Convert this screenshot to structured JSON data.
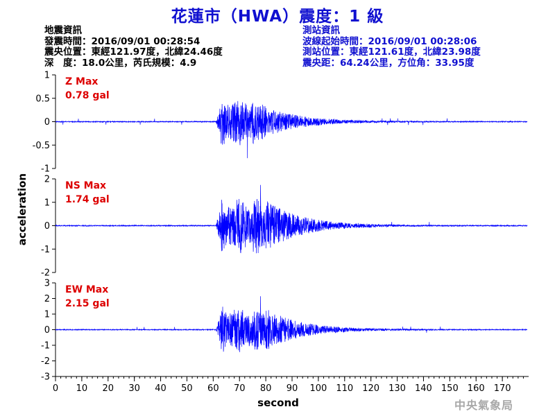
{
  "title": "花蓮市（HWA）震度：1 級",
  "event_info": {
    "heading": "地震資訊",
    "origin_time": "發震時間：2016/09/01 00:28:54",
    "epicenter": "震央位置：東經121.97度，北緯24.46度",
    "depth_magnitude": "深　度：18.0公里，芮氏規模：4.9"
  },
  "station_info": {
    "heading": "測站資訊",
    "wave_start": "波線起始時間：2016/09/01 00:28:06",
    "station_location": "測站位置：東經121.61度，北緯23.98度",
    "distance_azimuth": "震央距：64.24公里，方位角：33.95度"
  },
  "watermark": "中央氣象局",
  "colors": {
    "trace": "#0000ff",
    "title": "#1010d0",
    "max_label": "#dd0000",
    "axis": "#000000"
  },
  "chart_data": {
    "type": "line",
    "xlabel": "second",
    "ylabel": "acceleration",
    "xlim": [
      0,
      180
    ],
    "xticks": [
      0,
      10,
      20,
      30,
      40,
      50,
      60,
      70,
      80,
      90,
      100,
      110,
      120,
      130,
      140,
      150,
      160,
      170
    ],
    "xtick_labels": [
      "0",
      "10",
      "20",
      "30",
      "40",
      "50",
      "60",
      "70",
      "80",
      "90",
      "100",
      "110",
      "120",
      "130",
      "140",
      "150",
      "160",
      "170"
    ],
    "p_arrival_s": 61,
    "panels": [
      {
        "component": "Z",
        "max_label": "Z Max",
        "max_value": "0.78 gal",
        "peak": 0.78,
        "peak_time_s": 73,
        "ylim": [
          -1,
          1
        ],
        "yticks": [
          -1,
          -0.5,
          0,
          0.5,
          1
        ],
        "ytick_labels": [
          "-1",
          "-0.5",
          "0",
          "0.5",
          "1"
        ]
      },
      {
        "component": "NS",
        "max_label": "NS Max",
        "max_value": "1.74 gal",
        "peak": 1.74,
        "peak_time_s": 78,
        "ylim": [
          -2,
          2
        ],
        "yticks": [
          -2,
          -1,
          0,
          1,
          2
        ],
        "ytick_labels": [
          "-2",
          "-1",
          "0",
          "1",
          "2"
        ]
      },
      {
        "component": "EW",
        "max_label": "EW Max",
        "max_value": "2.15 gal",
        "peak": 2.15,
        "peak_time_s": 78,
        "ylim": [
          -3,
          3
        ],
        "yticks": [
          -3,
          -2,
          -1,
          0,
          1,
          2,
          3
        ],
        "ytick_labels": [
          "-3",
          "-2",
          "-1",
          "0",
          "1",
          "2",
          "3"
        ]
      }
    ]
  }
}
